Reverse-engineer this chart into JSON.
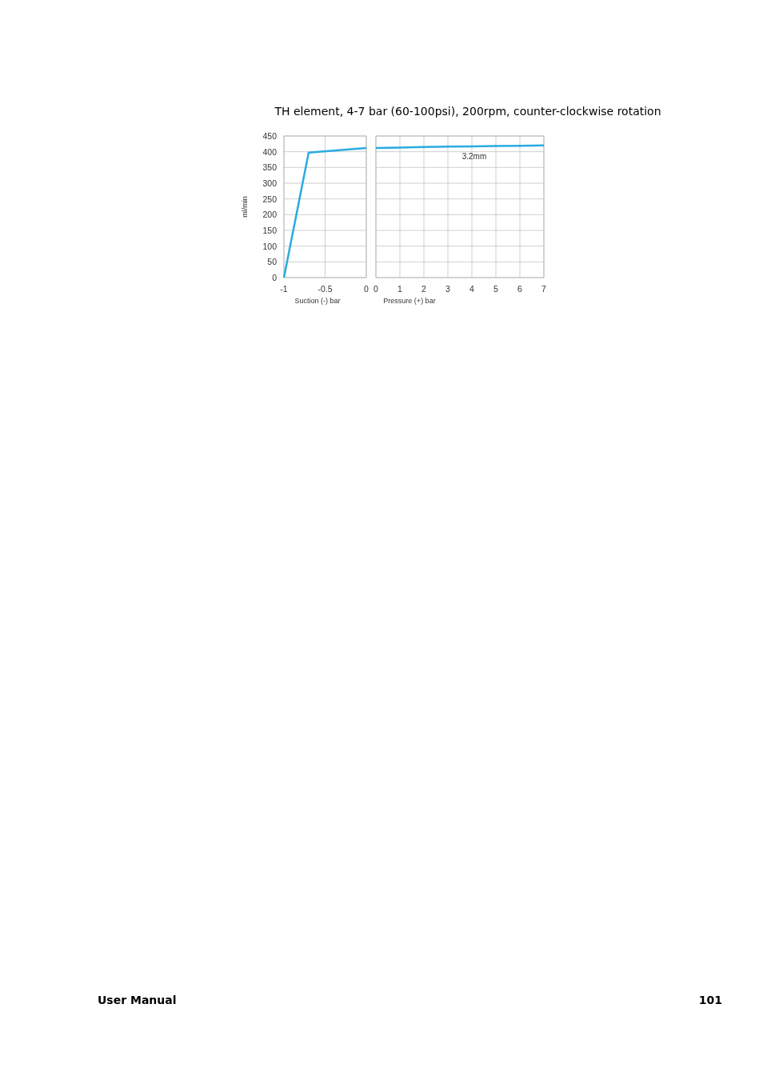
{
  "chart_data": [
    {
      "type": "line",
      "title": "TH element, 4-7 bar (60-100psi), 200rpm, counter-clockwise rotation",
      "xlabel": "Suction (-) bar",
      "ylabel": "ml/min",
      "series": [
        {
          "color": "#29abe2",
          "x": [
            -1,
            -0.7,
            0
          ],
          "values": [
            0,
            397,
            412
          ]
        }
      ],
      "xlim": [
        -1,
        0
      ],
      "xticks": [
        -1,
        -0.5,
        0
      ],
      "ylim": [
        0,
        450
      ],
      "yticks": [
        0,
        50,
        100,
        150,
        200,
        250,
        300,
        350,
        400,
        450
      ],
      "grid": true,
      "line_style": "solid",
      "marker": "none",
      "annotations": [
        "User Manual",
        "101"
      ]
    },
    {
      "type": "line",
      "xlabel": "Pressure (+) bar",
      "series": [
        {
          "name": "3.2mm",
          "color": "#29abe2",
          "x": [
            0,
            1,
            2,
            3,
            4,
            5,
            6,
            7
          ],
          "values": [
            412,
            413,
            415,
            416,
            417,
            418,
            419,
            420
          ]
        }
      ],
      "xlim": [
        0,
        7
      ],
      "xticks": [
        0,
        1,
        2,
        3,
        4,
        5,
        6,
        7
      ],
      "ylim": [
        0,
        450
      ],
      "yticks": [
        0,
        50,
        100,
        150,
        200,
        250,
        300,
        350,
        400,
        450
      ],
      "grid": true,
      "tick_labels": "x",
      "line_style": "solid",
      "marker": "none"
    }
  ]
}
